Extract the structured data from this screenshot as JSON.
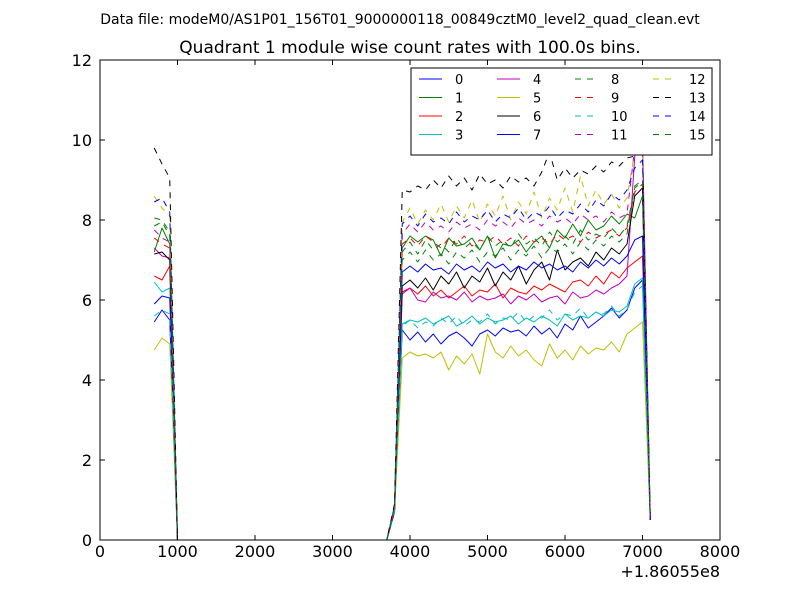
{
  "chart_data": {
    "type": "line",
    "suptitle": "Data file: modeM0/AS1P01_156T01_9000000118_00849cztM0_level2_quad_clean.evt",
    "title": "Quadrant 1 module wise count rates with 100.0s bins.",
    "xlabel": "",
    "ylabel": "",
    "x_offset_label": "+1.86055e8",
    "xlim": [
      0,
      8000
    ],
    "ylim": [
      0,
      12
    ],
    "xticks": [
      "0",
      "1000",
      "2000",
      "3000",
      "4000",
      "5000",
      "6000",
      "7000",
      "8000"
    ],
    "yticks": [
      "0",
      "2",
      "4",
      "6",
      "8",
      "10",
      "12"
    ],
    "grid": false,
    "legend_position": "top-right",
    "legend_columns": 4,
    "x": [
      700,
      800,
      900,
      1000,
      1100,
      1200,
      1300,
      1400,
      1500,
      1600,
      1700,
      1800,
      1900,
      2000,
      2100,
      2200,
      2300,
      2400,
      2500,
      2600,
      2700,
      2800,
      2900,
      3000,
      3100,
      3200,
      3300,
      3400,
      3500,
      3600,
      3700,
      3800,
      3900,
      4000,
      4100,
      4200,
      4300,
      4400,
      4500,
      4600,
      4700,
      4800,
      4900,
      5000,
      5100,
      5200,
      5300,
      5400,
      5500,
      5600,
      5700,
      5800,
      5900,
      6000,
      6100,
      6200,
      6300,
      6400,
      6500,
      6600,
      6700,
      6800,
      6900,
      7000,
      7100
    ],
    "series": [
      {
        "name": "0",
        "color": "#0000ff",
        "dash": "solid",
        "values": [
          5.45,
          5.75,
          5.5,
          0.0,
          0.0,
          0.0,
          0.0,
          0.0,
          0.0,
          0.0,
          0.0,
          0.0,
          0.0,
          0.0,
          0.0,
          0.0,
          0.0,
          0.0,
          0.0,
          0.0,
          0.0,
          0.0,
          0.0,
          0.0,
          0.0,
          0.0,
          0.0,
          0.0,
          0.0,
          0.0,
          0.0,
          0.7,
          5.25,
          5.0,
          5.2,
          4.95,
          5.15,
          4.9,
          5.1,
          5.2,
          5.05,
          4.85,
          5.15,
          5.25,
          5.1,
          5.3,
          5.2,
          5.25,
          5.1,
          5.35,
          5.15,
          5.3,
          5.05,
          5.4,
          5.25,
          5.6,
          5.3,
          5.45,
          5.6,
          5.8,
          5.55,
          5.75,
          6.3,
          6.5,
          0.5
        ]
      },
      {
        "name": "1",
        "color": "#008000",
        "dash": "solid",
        "values": [
          7.2,
          7.8,
          7.4,
          0.0,
          0.0,
          0.0,
          0.0,
          0.0,
          0.0,
          0.0,
          0.0,
          0.0,
          0.0,
          0.0,
          0.0,
          0.0,
          0.0,
          0.0,
          0.0,
          0.0,
          0.0,
          0.0,
          0.0,
          0.0,
          0.0,
          0.0,
          0.0,
          0.0,
          0.0,
          0.0,
          0.0,
          0.75,
          7.3,
          7.6,
          7.45,
          7.6,
          7.5,
          7.1,
          7.55,
          7.35,
          7.4,
          7.55,
          7.25,
          7.6,
          7.05,
          7.4,
          7.35,
          7.5,
          7.2,
          7.45,
          7.6,
          7.3,
          7.75,
          7.55,
          7.9,
          7.6,
          8.0,
          7.75,
          7.85,
          8.1,
          7.9,
          8.15,
          8.05,
          8.6,
          0.55
        ]
      },
      {
        "name": "2",
        "color": "#ff0000",
        "dash": "solid",
        "values": [
          6.6,
          6.5,
          6.85,
          0.0,
          0.0,
          0.0,
          0.0,
          0.0,
          0.0,
          0.0,
          0.0,
          0.0,
          0.0,
          0.0,
          0.0,
          0.0,
          0.0,
          0.0,
          0.0,
          0.0,
          0.0,
          0.0,
          0.0,
          0.0,
          0.0,
          0.0,
          0.0,
          0.0,
          0.0,
          0.0,
          0.0,
          0.7,
          6.2,
          6.3,
          6.15,
          6.35,
          6.1,
          6.25,
          6.05,
          6.2,
          6.35,
          6.1,
          6.25,
          6.2,
          6.4,
          6.05,
          6.3,
          6.2,
          6.15,
          6.35,
          6.25,
          6.4,
          6.3,
          6.2,
          6.45,
          6.5,
          6.35,
          6.6,
          6.4,
          6.7,
          6.55,
          6.8,
          6.95,
          7.1,
          0.5
        ]
      },
      {
        "name": "3",
        "color": "#00bfbf",
        "dash": "solid",
        "values": [
          6.45,
          6.2,
          6.3,
          0.0,
          0.0,
          0.0,
          0.0,
          0.0,
          0.0,
          0.0,
          0.0,
          0.0,
          0.0,
          0.0,
          0.0,
          0.0,
          0.0,
          0.0,
          0.0,
          0.0,
          0.0,
          0.0,
          0.0,
          0.0,
          0.0,
          0.0,
          0.0,
          0.0,
          0.0,
          0.0,
          0.0,
          0.7,
          5.4,
          5.5,
          5.45,
          5.55,
          5.4,
          5.5,
          5.6,
          5.35,
          5.45,
          5.6,
          5.4,
          5.55,
          5.45,
          5.5,
          5.6,
          5.4,
          5.55,
          5.45,
          5.6,
          5.5,
          5.35,
          5.65,
          5.5,
          5.6,
          5.55,
          5.7,
          5.6,
          5.75,
          5.7,
          5.85,
          6.4,
          6.55,
          0.5
        ]
      },
      {
        "name": "4",
        "color": "#bf00bf",
        "dash": "solid",
        "values": [
          7.3,
          7.1,
          7.05,
          0.0,
          0.0,
          0.0,
          0.0,
          0.0,
          0.0,
          0.0,
          0.0,
          0.0,
          0.0,
          0.0,
          0.0,
          0.0,
          0.0,
          0.0,
          0.0,
          0.0,
          0.0,
          0.0,
          0.0,
          0.0,
          0.0,
          0.0,
          0.0,
          0.0,
          0.0,
          0.0,
          0.0,
          0.7,
          6.15,
          6.3,
          6.0,
          5.95,
          6.2,
          6.05,
          6.1,
          6.0,
          6.2,
          5.95,
          6.1,
          6.0,
          6.05,
          6.15,
          5.9,
          6.1,
          6.0,
          6.15,
          5.95,
          6.05,
          6.1,
          5.9,
          6.2,
          6.05,
          6.1,
          6.25,
          6.15,
          6.3,
          6.4,
          6.6,
          9.6,
          10.0,
          0.5
        ]
      },
      {
        "name": "5",
        "color": "#bfbf00",
        "dash": "solid",
        "values": [
          4.75,
          5.05,
          4.9,
          0.0,
          0.0,
          0.0,
          0.0,
          0.0,
          0.0,
          0.0,
          0.0,
          0.0,
          0.0,
          0.0,
          0.0,
          0.0,
          0.0,
          0.0,
          0.0,
          0.0,
          0.0,
          0.0,
          0.0,
          0.0,
          0.0,
          0.0,
          0.0,
          0.0,
          0.0,
          0.0,
          0.0,
          0.7,
          4.55,
          4.7,
          4.6,
          4.65,
          4.55,
          4.7,
          4.25,
          4.6,
          4.4,
          4.65,
          4.15,
          5.15,
          4.7,
          4.55,
          4.85,
          4.6,
          4.75,
          4.5,
          4.35,
          4.9,
          4.55,
          4.75,
          4.5,
          4.85,
          4.65,
          4.8,
          4.75,
          4.95,
          4.7,
          5.15,
          5.3,
          5.45,
          0.5
        ]
      },
      {
        "name": "6",
        "color": "#000000",
        "dash": "solid",
        "values": [
          7.15,
          7.2,
          7.0,
          0.0,
          0.0,
          0.0,
          0.0,
          0.0,
          0.0,
          0.0,
          0.0,
          0.0,
          0.0,
          0.0,
          0.0,
          0.0,
          0.0,
          0.0,
          0.0,
          0.0,
          0.0,
          0.0,
          0.0,
          0.0,
          0.0,
          0.0,
          0.0,
          0.0,
          0.0,
          0.0,
          0.0,
          0.75,
          6.35,
          6.5,
          6.3,
          6.55,
          6.25,
          6.6,
          6.4,
          6.7,
          6.3,
          6.6,
          6.45,
          6.8,
          6.35,
          6.7,
          6.5,
          6.85,
          6.4,
          6.75,
          6.95,
          6.5,
          7.25,
          6.75,
          6.95,
          7.05,
          6.85,
          7.2,
          7.0,
          7.3,
          7.15,
          7.4,
          8.6,
          8.8,
          0.5
        ]
      },
      {
        "name": "7",
        "color": "#0000ff",
        "dash": "solid",
        "values": [
          5.9,
          6.1,
          6.05,
          0.0,
          0.0,
          0.0,
          0.0,
          0.0,
          0.0,
          0.0,
          0.0,
          0.0,
          0.0,
          0.0,
          0.0,
          0.0,
          0.0,
          0.0,
          0.0,
          0.0,
          0.0,
          0.0,
          0.0,
          0.0,
          0.0,
          0.0,
          0.0,
          0.0,
          0.0,
          0.0,
          0.0,
          0.7,
          6.7,
          6.85,
          6.7,
          6.9,
          6.75,
          6.8,
          6.65,
          6.9,
          6.75,
          6.85,
          6.7,
          6.95,
          6.8,
          6.9,
          6.7,
          6.85,
          6.75,
          6.95,
          6.8,
          6.9,
          6.75,
          6.85,
          6.7,
          6.95,
          6.8,
          7.0,
          6.85,
          7.05,
          6.9,
          7.1,
          7.5,
          7.6,
          0.5
        ]
      },
      {
        "name": "8",
        "color": "#008000",
        "dash": "dashed",
        "values": [
          7.85,
          7.95,
          7.6,
          0.0,
          0.0,
          0.0,
          0.0,
          0.0,
          0.0,
          0.0,
          0.0,
          0.0,
          0.0,
          0.0,
          0.0,
          0.0,
          0.0,
          0.0,
          0.0,
          0.0,
          0.0,
          0.0,
          0.0,
          0.0,
          0.0,
          0.0,
          0.0,
          0.0,
          0.0,
          0.0,
          0.0,
          0.8,
          7.0,
          7.2,
          6.95,
          7.25,
          7.0,
          7.15,
          6.9,
          7.2,
          7.05,
          7.25,
          6.95,
          7.2,
          7.1,
          7.3,
          7.0,
          7.25,
          7.1,
          7.35,
          7.05,
          7.3,
          7.2,
          7.4,
          7.15,
          7.45,
          7.25,
          7.5,
          7.35,
          7.6,
          7.45,
          7.65,
          8.85,
          9.0,
          0.55
        ]
      },
      {
        "name": "9",
        "color": "#ff0000",
        "dash": "dashed",
        "values": [
          7.55,
          7.4,
          7.3,
          0.0,
          0.0,
          0.0,
          0.0,
          0.0,
          0.0,
          0.0,
          0.0,
          0.0,
          0.0,
          0.0,
          0.0,
          0.0,
          0.0,
          0.0,
          0.0,
          0.0,
          0.0,
          0.0,
          0.0,
          0.0,
          0.0,
          0.0,
          0.0,
          0.0,
          0.0,
          0.0,
          0.0,
          0.75,
          7.4,
          7.55,
          7.35,
          7.6,
          7.45,
          7.3,
          7.55,
          7.4,
          7.6,
          7.35,
          7.5,
          7.45,
          7.6,
          7.4,
          7.55,
          7.35,
          7.6,
          7.45,
          7.55,
          7.4,
          7.65,
          7.5,
          7.6,
          7.45,
          7.7,
          7.55,
          7.65,
          7.75,
          7.6,
          7.8,
          8.7,
          8.9,
          0.55
        ]
      },
      {
        "name": "10",
        "color": "#00bfbf",
        "dash": "dashed",
        "values": [
          5.6,
          5.75,
          5.65,
          0.0,
          0.0,
          0.0,
          0.0,
          0.0,
          0.0,
          0.0,
          0.0,
          0.0,
          0.0,
          0.0,
          0.0,
          0.0,
          0.0,
          0.0,
          0.0,
          0.0,
          0.0,
          0.0,
          0.0,
          0.0,
          0.0,
          0.0,
          0.0,
          0.0,
          0.0,
          0.0,
          0.0,
          0.7,
          5.35,
          5.5,
          5.3,
          5.45,
          5.35,
          5.55,
          5.4,
          5.6,
          5.35,
          5.5,
          5.45,
          5.65,
          5.4,
          5.55,
          5.5,
          5.7,
          5.45,
          5.6,
          5.55,
          5.75,
          5.5,
          5.65,
          5.6,
          5.8,
          5.55,
          5.7,
          5.65,
          5.85,
          5.6,
          5.75,
          6.2,
          6.35,
          0.5
        ]
      },
      {
        "name": "11",
        "color": "#bf00bf",
        "dash": "dashed",
        "values": [
          7.75,
          7.55,
          7.45,
          0.0,
          0.0,
          0.0,
          0.0,
          0.0,
          0.0,
          0.0,
          0.0,
          0.0,
          0.0,
          0.0,
          0.0,
          0.0,
          0.0,
          0.0,
          0.0,
          0.0,
          0.0,
          0.0,
          0.0,
          0.0,
          0.0,
          0.0,
          0.0,
          0.0,
          0.0,
          0.0,
          0.0,
          0.8,
          7.65,
          7.9,
          7.7,
          7.95,
          7.75,
          7.85,
          7.7,
          7.95,
          7.8,
          7.9,
          7.75,
          8.0,
          7.85,
          7.95,
          7.8,
          8.05,
          7.9,
          8.0,
          7.85,
          8.1,
          7.95,
          8.05,
          7.9,
          8.15,
          8.0,
          8.1,
          7.95,
          8.2,
          8.05,
          8.15,
          9.8,
          9.95,
          0.55
        ]
      },
      {
        "name": "12",
        "color": "#bfbf00",
        "dash": "dashed",
        "values": [
          8.6,
          8.3,
          8.1,
          0.0,
          0.0,
          0.0,
          0.0,
          0.0,
          0.0,
          0.0,
          0.0,
          0.0,
          0.0,
          0.0,
          0.0,
          0.0,
          0.0,
          0.0,
          0.0,
          0.0,
          0.0,
          0.0,
          0.0,
          0.0,
          0.0,
          0.0,
          0.0,
          0.0,
          0.0,
          0.0,
          0.0,
          0.85,
          7.95,
          8.3,
          7.9,
          8.25,
          8.0,
          8.4,
          7.95,
          8.35,
          8.05,
          8.5,
          7.95,
          8.4,
          8.1,
          8.6,
          8.0,
          8.45,
          8.15,
          8.7,
          8.05,
          8.55,
          8.25,
          8.8,
          8.2,
          9.1,
          8.35,
          8.75,
          8.4,
          8.65,
          8.3,
          8.55,
          9.7,
          9.85,
          0.55
        ]
      },
      {
        "name": "13",
        "color": "#000000",
        "dash": "dashed",
        "values": [
          9.8,
          9.4,
          9.05,
          0.0,
          0.0,
          0.0,
          0.0,
          0.0,
          0.0,
          0.0,
          0.0,
          0.0,
          0.0,
          0.0,
          0.0,
          0.0,
          0.0,
          0.0,
          0.0,
          0.0,
          0.0,
          0.0,
          0.0,
          0.0,
          0.0,
          0.0,
          0.0,
          0.0,
          0.0,
          0.0,
          0.0,
          0.9,
          8.75,
          8.7,
          8.85,
          8.75,
          9.0,
          8.8,
          9.1,
          8.85,
          9.05,
          8.75,
          9.15,
          8.9,
          9.0,
          8.8,
          9.1,
          8.95,
          9.05,
          8.85,
          9.2,
          9.7,
          9.0,
          9.3,
          9.05,
          9.25,
          9.15,
          9.35,
          9.2,
          9.45,
          9.35,
          9.55,
          9.6,
          9.7,
          0.55
        ]
      },
      {
        "name": "14",
        "color": "#0000ff",
        "dash": "dashed",
        "values": [
          8.45,
          8.55,
          8.2,
          0.0,
          0.0,
          0.0,
          0.0,
          0.0,
          0.0,
          0.0,
          0.0,
          0.0,
          0.0,
          0.0,
          0.0,
          0.0,
          0.0,
          0.0,
          0.0,
          0.0,
          0.0,
          0.0,
          0.0,
          0.0,
          0.0,
          0.0,
          0.0,
          0.0,
          0.0,
          0.0,
          0.0,
          0.85,
          7.9,
          8.1,
          7.85,
          8.15,
          7.95,
          8.05,
          7.9,
          8.2,
          7.95,
          8.1,
          8.0,
          8.25,
          7.95,
          8.15,
          8.05,
          8.3,
          8.0,
          8.2,
          8.1,
          8.35,
          8.05,
          8.25,
          8.15,
          8.4,
          8.2,
          8.5,
          8.35,
          8.65,
          8.5,
          8.75,
          9.3,
          9.5,
          0.55
        ]
      },
      {
        "name": "15",
        "color": "#008000",
        "dash": "dashed",
        "values": [
          8.05,
          8.0,
          7.7,
          0.0,
          0.0,
          0.0,
          0.0,
          0.0,
          0.0,
          0.0,
          0.0,
          0.0,
          0.0,
          0.0,
          0.0,
          0.0,
          0.0,
          0.0,
          0.0,
          0.0,
          0.0,
          0.0,
          0.0,
          0.0,
          0.0,
          0.0,
          0.0,
          0.0,
          0.0,
          0.0,
          0.0,
          0.8,
          7.2,
          7.45,
          7.15,
          7.5,
          7.25,
          7.4,
          7.2,
          7.55,
          7.3,
          7.45,
          7.25,
          7.6,
          7.35,
          7.5,
          7.3,
          7.65,
          7.4,
          7.55,
          7.35,
          7.7,
          7.45,
          7.6,
          7.4,
          7.75,
          7.5,
          7.65,
          7.55,
          7.8,
          7.6,
          7.85,
          8.8,
          8.95,
          0.55
        ]
      }
    ]
  }
}
